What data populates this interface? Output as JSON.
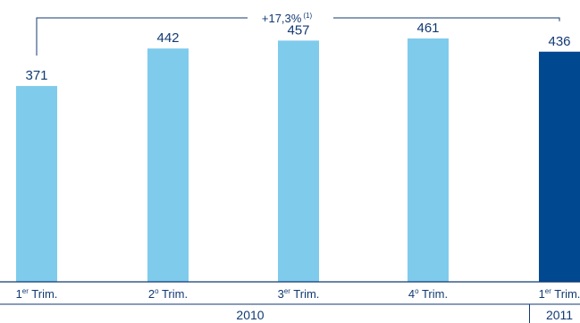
{
  "chart_data": {
    "type": "bar",
    "categories": [
      {
        "main": "1",
        "sup": "er",
        "rest": " Trim."
      },
      {
        "main": "2",
        "sup": "o",
        "rest": " Trim."
      },
      {
        "main": "3",
        "sup": "er",
        "rest": " Trim."
      },
      {
        "main": "4",
        "sup": "o",
        "rest": " Trim."
      },
      {
        "main": "1",
        "sup": "er",
        "rest": " Trim."
      }
    ],
    "values": [
      371,
      442,
      457,
      461,
      436
    ],
    "value_labels": [
      "371",
      "442",
      "457",
      "461",
      "436"
    ],
    "groups": [
      {
        "label": "2010",
        "count": 4
      },
      {
        "label": "2011",
        "count": 1
      }
    ],
    "annotation": {
      "text": "+17,3%",
      "sup": "(1)",
      "from_index": 0,
      "to_index": 4
    },
    "ylim": [
      0,
      500
    ],
    "colors": {
      "default": "#7fcbec",
      "highlight": "#00488f",
      "text": "#123a73",
      "axis": "#123a73"
    },
    "highlight_index": 4,
    "grid": false
  }
}
